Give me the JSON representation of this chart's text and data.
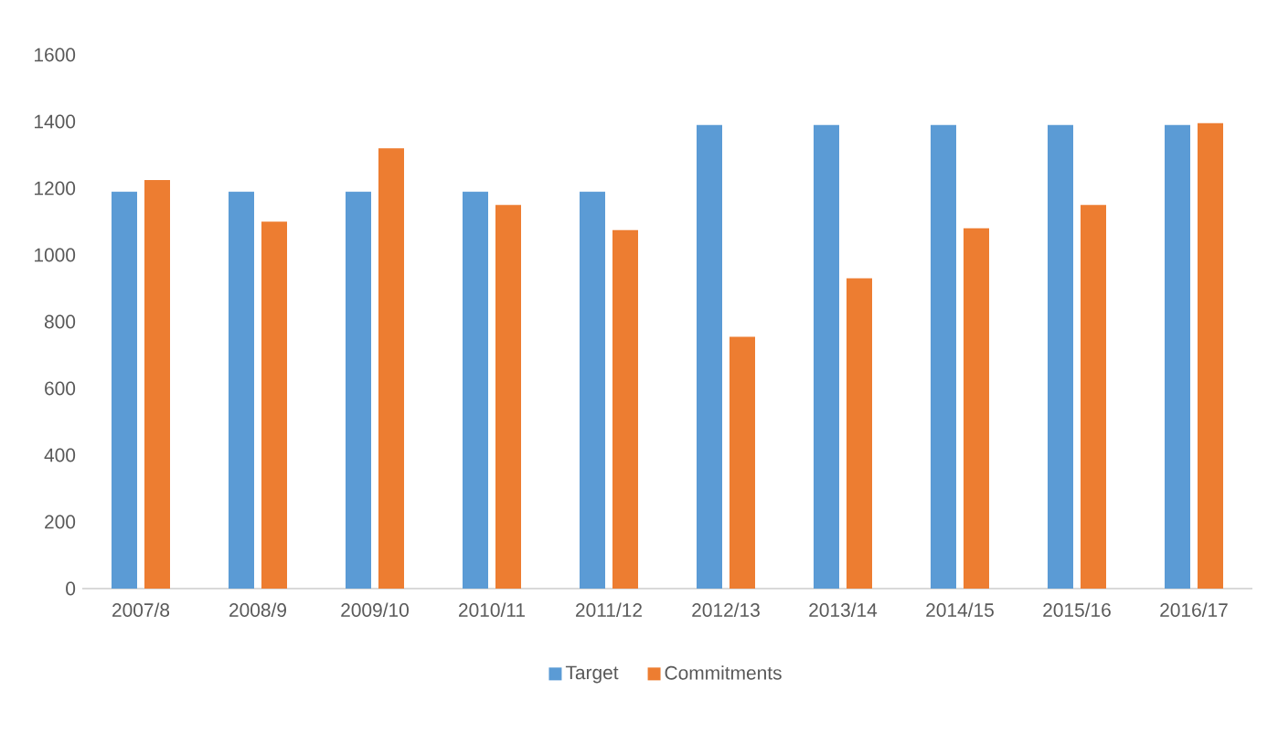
{
  "chart_data": {
    "type": "bar",
    "categories": [
      "2007/8",
      "2008/9",
      "2009/10",
      "2010/11",
      "2011/12",
      "2012/13",
      "2013/14",
      "2014/15",
      "2015/16",
      "2016/17"
    ],
    "series": [
      {
        "name": "Target",
        "color": "#5b9bd5",
        "values": [
          1190,
          1190,
          1190,
          1190,
          1190,
          1390,
          1390,
          1390,
          1390,
          1390
        ]
      },
      {
        "name": "Commitments",
        "color": "#ed7d31",
        "values": [
          1225,
          1100,
          1320,
          1150,
          1075,
          755,
          930,
          1080,
          1150,
          1395
        ]
      }
    ],
    "ylim": [
      0,
      1600
    ],
    "yticks": [
      0,
      200,
      400,
      600,
      800,
      1000,
      1200,
      1400,
      1600
    ],
    "legend": "bottom"
  }
}
